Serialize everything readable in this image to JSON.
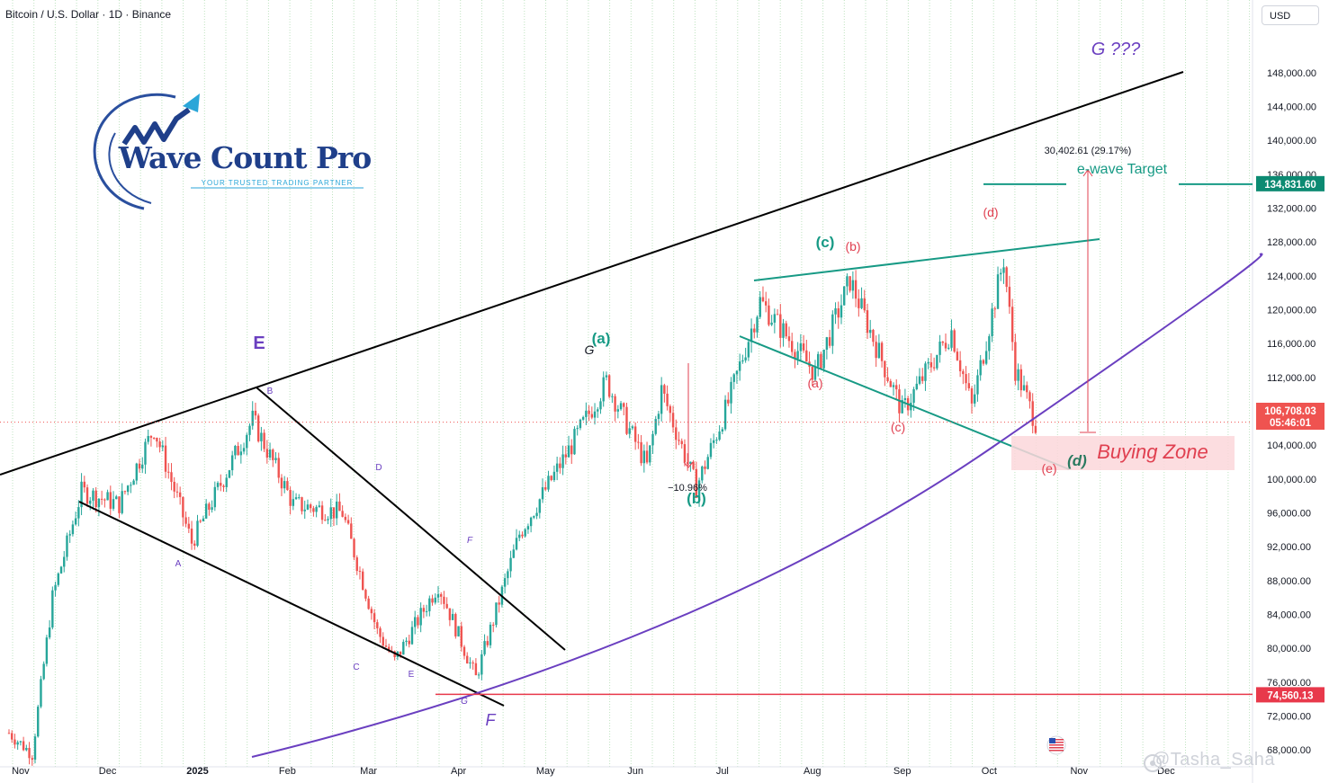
{
  "header": {
    "symbol_title": "Bitcoin / U.S. Dollar · 1D · Binance",
    "currency": "USD"
  },
  "logo": {
    "name": "Wave Count Pro",
    "tagline": "YOUR TRUSTED TRADING PARTNER"
  },
  "watermark": "@Tasha_Saha",
  "chart_data": {
    "type": "candlestick",
    "x_ticks": [
      "Nov",
      "Dec",
      "2025",
      "Feb",
      "Mar",
      "Apr",
      "May",
      "Jun",
      "Jul",
      "Aug",
      "Sep",
      "Oct",
      "Nov",
      "Dec"
    ],
    "y_ticks": [
      "148,000.00",
      "144,000.00",
      "140,000.00",
      "136,000.00",
      "132,000.00",
      "128,000.00",
      "124,000.00",
      "120,000.00",
      "116,000.00",
      "112,000.00",
      "108,000.00",
      "104,000.00",
      "100,000.00",
      "96,000.00",
      "92,000.00",
      "88,000.00",
      "84,000.00",
      "80,000.00",
      "76,000.00",
      "72,000.00",
      "68,000.00"
    ],
    "ylim": [
      66000,
      150000
    ],
    "price_path": [
      [
        "2024-10-28",
        70000
      ],
      [
        "2024-11-05",
        67500
      ],
      [
        "2024-11-12",
        86000
      ],
      [
        "2024-11-22",
        98500
      ],
      [
        "2024-12-05",
        97000
      ],
      [
        "2024-12-17",
        106000
      ],
      [
        "2024-12-30",
        92500
      ],
      [
        "2025-01-20",
        107000
      ],
      [
        "2025-02-03",
        97000
      ],
      [
        "2025-02-20",
        96000
      ],
      [
        "2025-03-04",
        82000
      ],
      [
        "2025-03-10",
        78500
      ],
      [
        "2025-03-25",
        87500
      ],
      [
        "2025-04-07",
        76500
      ],
      [
        "2025-04-22",
        93500
      ],
      [
        "2025-05-10",
        104000
      ],
      [
        "2025-05-22",
        111500
      ],
      [
        "2025-06-05",
        101500
      ],
      [
        "2025-06-10",
        110500
      ],
      [
        "2025-06-22",
        99000
      ],
      [
        "2025-07-03",
        109000
      ],
      [
        "2025-07-14",
        121000
      ],
      [
        "2025-08-02",
        112500
      ],
      [
        "2025-08-14",
        123500
      ],
      [
        "2025-09-01",
        108000
      ],
      [
        "2025-09-18",
        117500
      ],
      [
        "2025-09-25",
        108500
      ],
      [
        "2025-10-06",
        126000
      ],
      [
        "2025-10-10",
        113000
      ],
      [
        "2025-10-17",
        106708
      ]
    ],
    "last_price": "106,708.03",
    "countdown": "05:46:01",
    "target_price": "134,831.60",
    "support_price": "74,560.13",
    "measure_label": "30,402.61 (29.17%)",
    "drop_label": "−10.96%",
    "annotations": {
      "target": "e-wave Target",
      "buying_zone": "Buying Zone",
      "wave_E": "E",
      "wave_F": "F",
      "wave_G_top": "G ???",
      "wave_G_small": "G",
      "green_a": "(a)",
      "green_b": "(b)",
      "green_c": "(c)",
      "green_d": "(d)",
      "red_a": "(a)",
      "red_b": "(b)",
      "red_c": "(c)",
      "red_d": "(d)",
      "red_e": "(e)",
      "sub_A": "A",
      "sub_B": "B",
      "sub_C": "C",
      "sub_D": "D",
      "sub_E": "E",
      "sub_F": "F",
      "sub_G": "G"
    },
    "colors": {
      "up": "#26a69a",
      "down": "#ef5350",
      "teal": "#179a85",
      "purple": "#6a3fc0",
      "red_label": "#e04050",
      "target_tag": "#0c8a72",
      "support_line": "#e8394b",
      "zone_fill": "#fbd7db"
    }
  }
}
